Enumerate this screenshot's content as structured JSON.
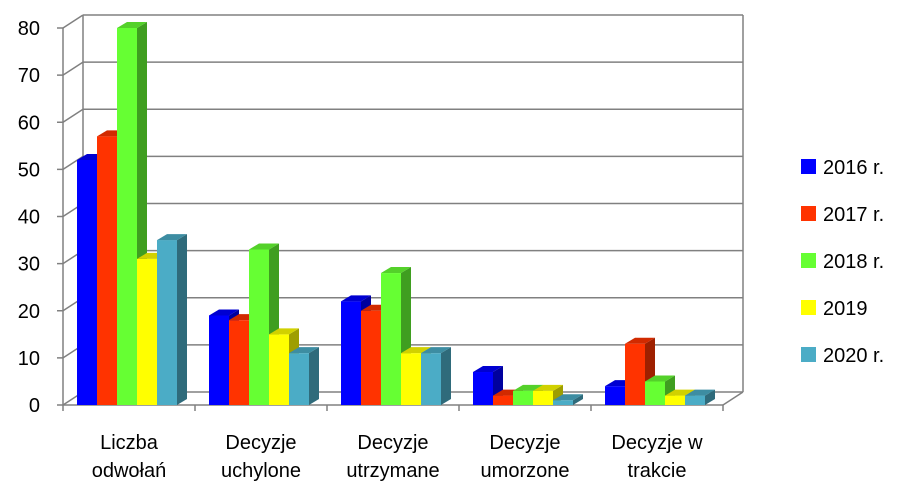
{
  "chart_data": {
    "type": "bar",
    "style": "3d-clustered-column",
    "title": "",
    "xlabel": "",
    "ylabel": "",
    "ylim": [
      0,
      80
    ],
    "yticks": [
      0,
      10,
      20,
      30,
      40,
      50,
      60,
      70,
      80
    ],
    "grid": true,
    "legend_position": "right",
    "categories": [
      [
        "Liczba",
        "odwołań"
      ],
      [
        "Decyzje",
        "uchylone"
      ],
      [
        "Decyzje",
        "utrzymane"
      ],
      [
        "Decyzje",
        "umorzone"
      ],
      [
        "Decyzje w",
        "trakcie"
      ]
    ],
    "series": [
      {
        "name": "2016 r.",
        "color": "#0000ff",
        "values": [
          52,
          19,
          22,
          7,
          4
        ]
      },
      {
        "name": "2017 r.",
        "color": "#ff3300",
        "values": [
          57,
          18,
          20,
          2,
          13
        ]
      },
      {
        "name": "2018 r.",
        "color": "#66ff33",
        "values": [
          80,
          33,
          28,
          3,
          5
        ]
      },
      {
        "name": "2019",
        "color": "#ffff00",
        "values": [
          31,
          15,
          11,
          3,
          2
        ]
      },
      {
        "name": "2020 r.",
        "color": "#4bacc6",
        "values": [
          35,
          11,
          11,
          1,
          2
        ]
      }
    ]
  }
}
